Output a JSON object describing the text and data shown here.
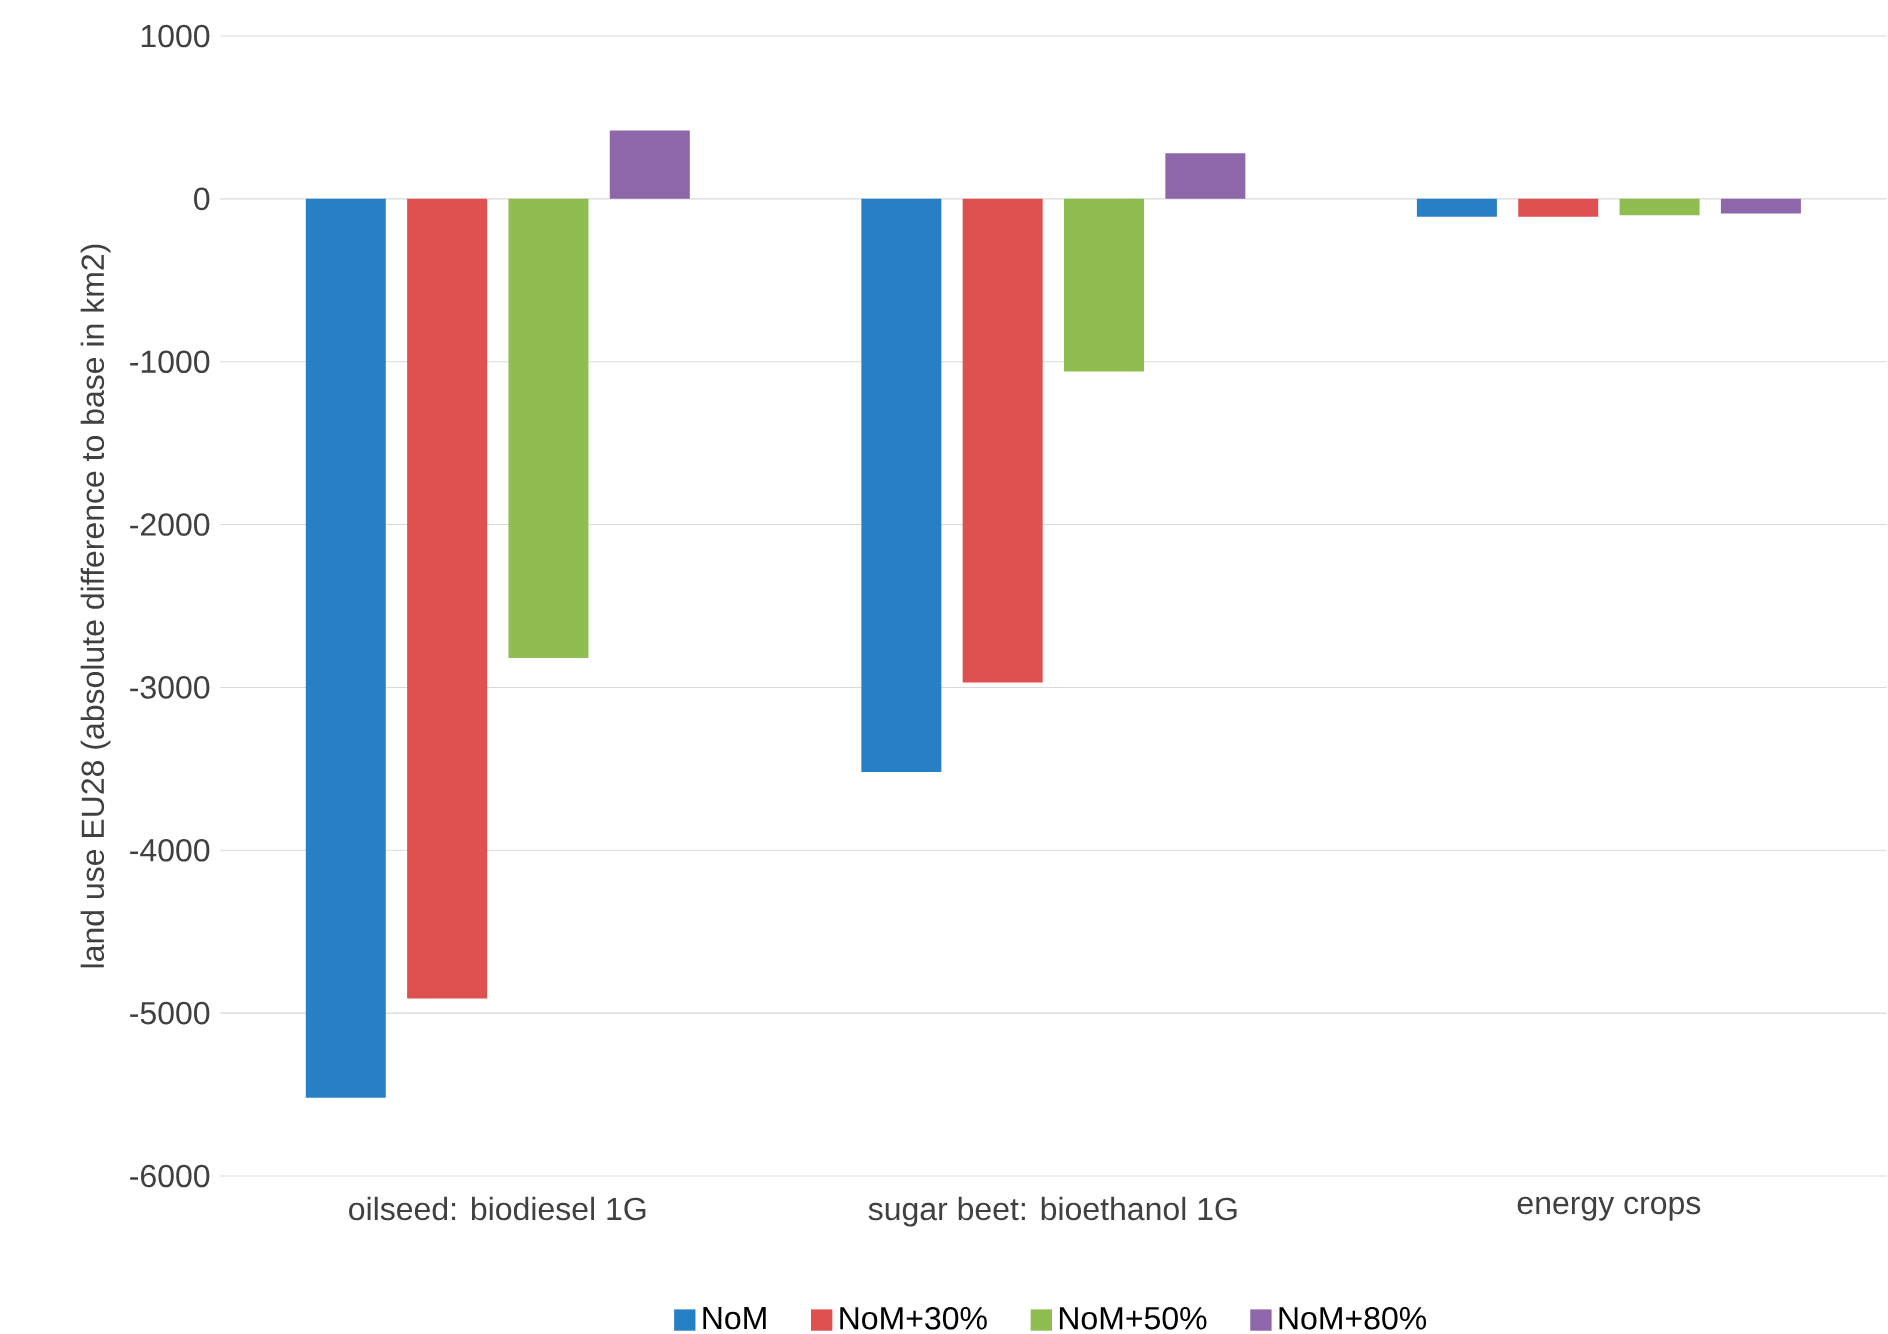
{
  "chart_data": {
    "type": "bar",
    "ylabel": "land use EU28 (absolute difference to base in km2)",
    "categories": [
      "oilseed: biodiesel 1G",
      "sugar beet: bioethanol 1G",
      "energy crops"
    ],
    "series": [
      {
        "name": "NoM",
        "color": "#2880c4",
        "values": [
          -5520,
          -3520,
          -110
        ]
      },
      {
        "name": "NoM+30%",
        "color": "#df5050",
        "values": [
          -4910,
          -2970,
          -110
        ]
      },
      {
        "name": "NoM+50%",
        "color": "#8fbd50",
        "values": [
          -2820,
          -1060,
          -100
        ]
      },
      {
        "name": "NoM+80%",
        "color": "#8e67ab",
        "values": [
          420,
          280,
          -90
        ]
      }
    ],
    "ylim": [
      -6000,
      1000
    ],
    "yticks": [
      -6000,
      -5000,
      -4000,
      -3000,
      -2000,
      -1000,
      0,
      1000
    ],
    "grid": "y",
    "legend": "bottom"
  }
}
